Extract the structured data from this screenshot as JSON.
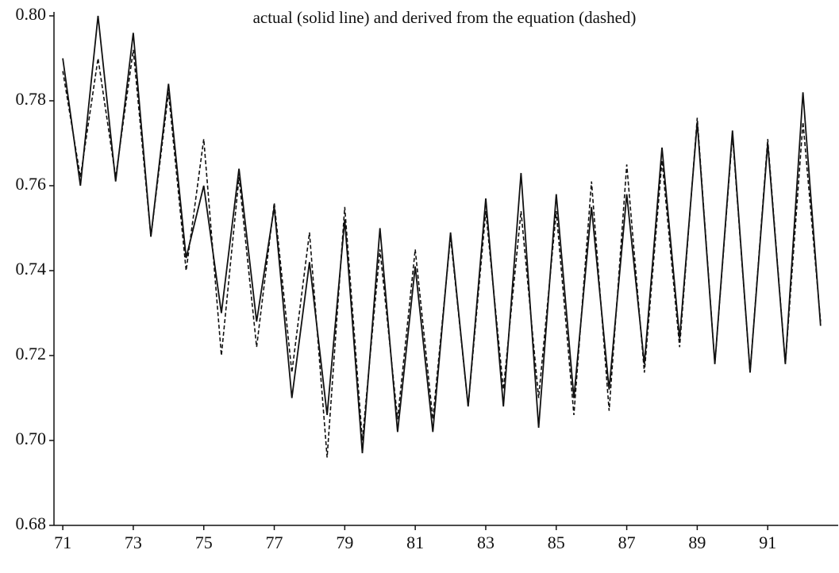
{
  "chart_data": {
    "type": "line",
    "title": "actual (solid line) and derived from the equation (dashed)",
    "x": [
      71,
      71.5,
      72,
      72.5,
      73,
      73.5,
      74,
      74.5,
      75,
      75.5,
      76,
      76.5,
      77,
      77.5,
      78,
      78.5,
      79,
      79.5,
      80,
      80.5,
      81,
      81.5,
      82,
      82.5,
      83,
      83.5,
      84,
      84.5,
      85,
      85.5,
      86,
      86.5,
      87,
      87.5,
      88,
      88.5,
      89,
      89.5,
      90,
      90.5,
      91,
      91.5,
      92,
      92.5
    ],
    "series": [
      {
        "color": "#111111",
        "dash": false,
        "values": [
          0.79,
          0.76,
          0.8,
          0.761,
          0.796,
          0.748,
          0.784,
          0.743,
          0.76,
          0.73,
          0.764,
          0.728,
          0.755,
          0.71,
          0.742,
          0.706,
          0.752,
          0.697,
          0.75,
          0.702,
          0.741,
          0.702,
          0.749,
          0.708,
          0.757,
          0.708,
          0.763,
          0.703,
          0.758,
          0.71,
          0.755,
          0.712,
          0.758,
          0.718,
          0.769,
          0.724,
          0.775,
          0.718,
          0.773,
          0.716,
          0.77,
          0.718,
          0.782,
          0.727
        ]
      },
      {
        "color": "#111111",
        "dash": true,
        "values": [
          0.787,
          0.762,
          0.79,
          0.762,
          0.792,
          0.748,
          0.782,
          0.74,
          0.771,
          0.72,
          0.762,
          0.722,
          0.756,
          0.716,
          0.749,
          0.696,
          0.755,
          0.7,
          0.745,
          0.705,
          0.745,
          0.705,
          0.748,
          0.708,
          0.754,
          0.712,
          0.754,
          0.71,
          0.754,
          0.706,
          0.761,
          0.707,
          0.765,
          0.716,
          0.766,
          0.722,
          0.776,
          0.718,
          0.772,
          0.716,
          0.771,
          0.718,
          0.775,
          0.728
        ]
      }
    ],
    "xlim": [
      70.75,
      93
    ],
    "xticks": [
      71,
      73,
      75,
      77,
      79,
      81,
      83,
      85,
      87,
      89,
      91
    ],
    "ylim": [
      0.68,
      0.8
    ],
    "yticks": [
      {
        "value": 0.68,
        "label": "0.68"
      },
      {
        "value": 0.7,
        "label": "0.70"
      },
      {
        "value": 0.72,
        "label": "0.72"
      },
      {
        "value": 0.74,
        "label": "0.74"
      },
      {
        "value": 0.76,
        "label": "0.76"
      },
      {
        "value": 0.78,
        "label": "0.78"
      },
      {
        "value": 0.8,
        "label": "0.80"
      }
    ]
  }
}
